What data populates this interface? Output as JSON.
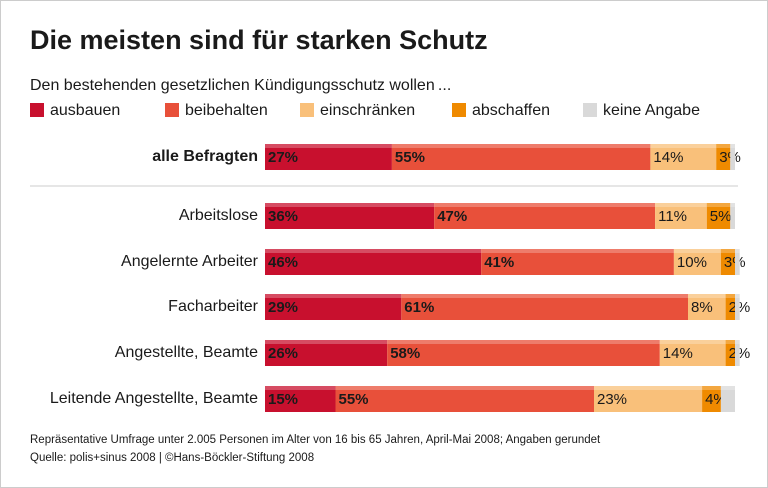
{
  "chart_data": {
    "type": "stacked-barh",
    "title": "Die meisten sind für starken Schutz",
    "subtitle": "Den bestehenden gesetzlichen Kündigungsschutz wollen ...",
    "categories": [
      "alle Befragten",
      "Arbeitslose",
      "Angelernte Arbeiter",
      "Facharbeiter",
      "Angestellte, Beamte",
      "Leitende Angestellte, Beamte"
    ],
    "xlim": [
      0,
      100
    ],
    "series": [
      {
        "name": "ausbauen",
        "color": "#c8102e",
        "values": [
          27,
          36,
          46,
          29,
          26,
          15
        ],
        "value_labels": [
          "27%",
          "36%",
          "46%",
          "29%",
          "26%",
          "15%"
        ]
      },
      {
        "name": "beibehalten",
        "color": "#e8503a",
        "values": [
          55,
          47,
          41,
          61,
          58,
          55
        ],
        "value_labels": [
          "55%",
          "47%",
          "41%",
          "61%",
          "58%",
          "55%"
        ]
      },
      {
        "name": "einschränken",
        "color": "#f9c07a",
        "values": [
          14,
          11,
          10,
          8,
          14,
          23
        ],
        "value_labels": [
          "14%",
          "11%",
          "10%",
          "8%",
          "14%",
          "23%"
        ]
      },
      {
        "name": "abschaffen",
        "color": "#ef8a00",
        "values": [
          3,
          5,
          3,
          2,
          2,
          4
        ],
        "value_labels": [
          "3%",
          "5%",
          "3%",
          "2%",
          "2%",
          "4%"
        ]
      },
      {
        "name": "keine Angabe",
        "color": "#d9d9d9",
        "values": [
          1,
          1,
          1,
          1,
          1,
          3
        ]
      }
    ],
    "notes": [
      "Repräsentative Umfrage unter 2.005 Personen im Alter von 16 bis 65 Jahren, April-Mai 2008; Angaben gerundet",
      "Quelle: polis+sinus 2008 | ©Hans-Böckler-Stiftung 2008"
    ]
  }
}
